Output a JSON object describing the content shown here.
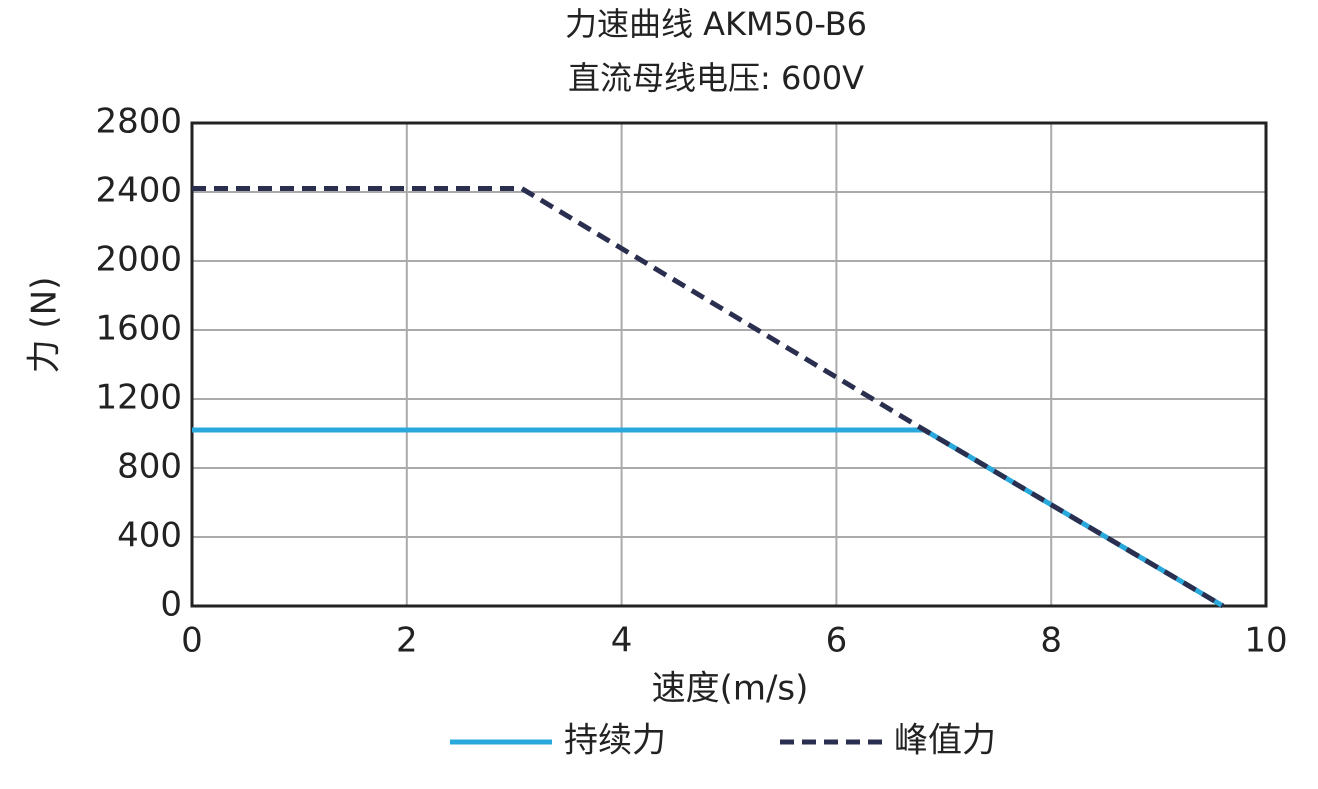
{
  "chart_data": {
    "type": "line",
    "title": "力速曲线 AKM50-B6",
    "subtitle": "直流母线电压: 600V",
    "x_label": "速度(m/s)",
    "y_label": "力 (N)",
    "xlim": [
      0,
      10
    ],
    "xticks": [
      0,
      2,
      4,
      6,
      8,
      10
    ],
    "ylim": [
      0,
      2800
    ],
    "yticks": [
      0,
      400,
      800,
      1200,
      1600,
      2000,
      2400,
      2800
    ],
    "grid": true,
    "legend": "bottom",
    "series": [
      {
        "name": "持续力",
        "color": "#29a8dc",
        "dash": "solid",
        "x": [
          0,
          6.82,
          9.6
        ],
        "values": [
          1020,
          1020,
          0
        ]
      },
      {
        "name": "峰值力",
        "color": "#2b2f4f",
        "dash": "dashed",
        "x": [
          0,
          3.07,
          6.82,
          9.6
        ],
        "values": [
          2420,
          2420,
          1020,
          0
        ]
      }
    ]
  }
}
